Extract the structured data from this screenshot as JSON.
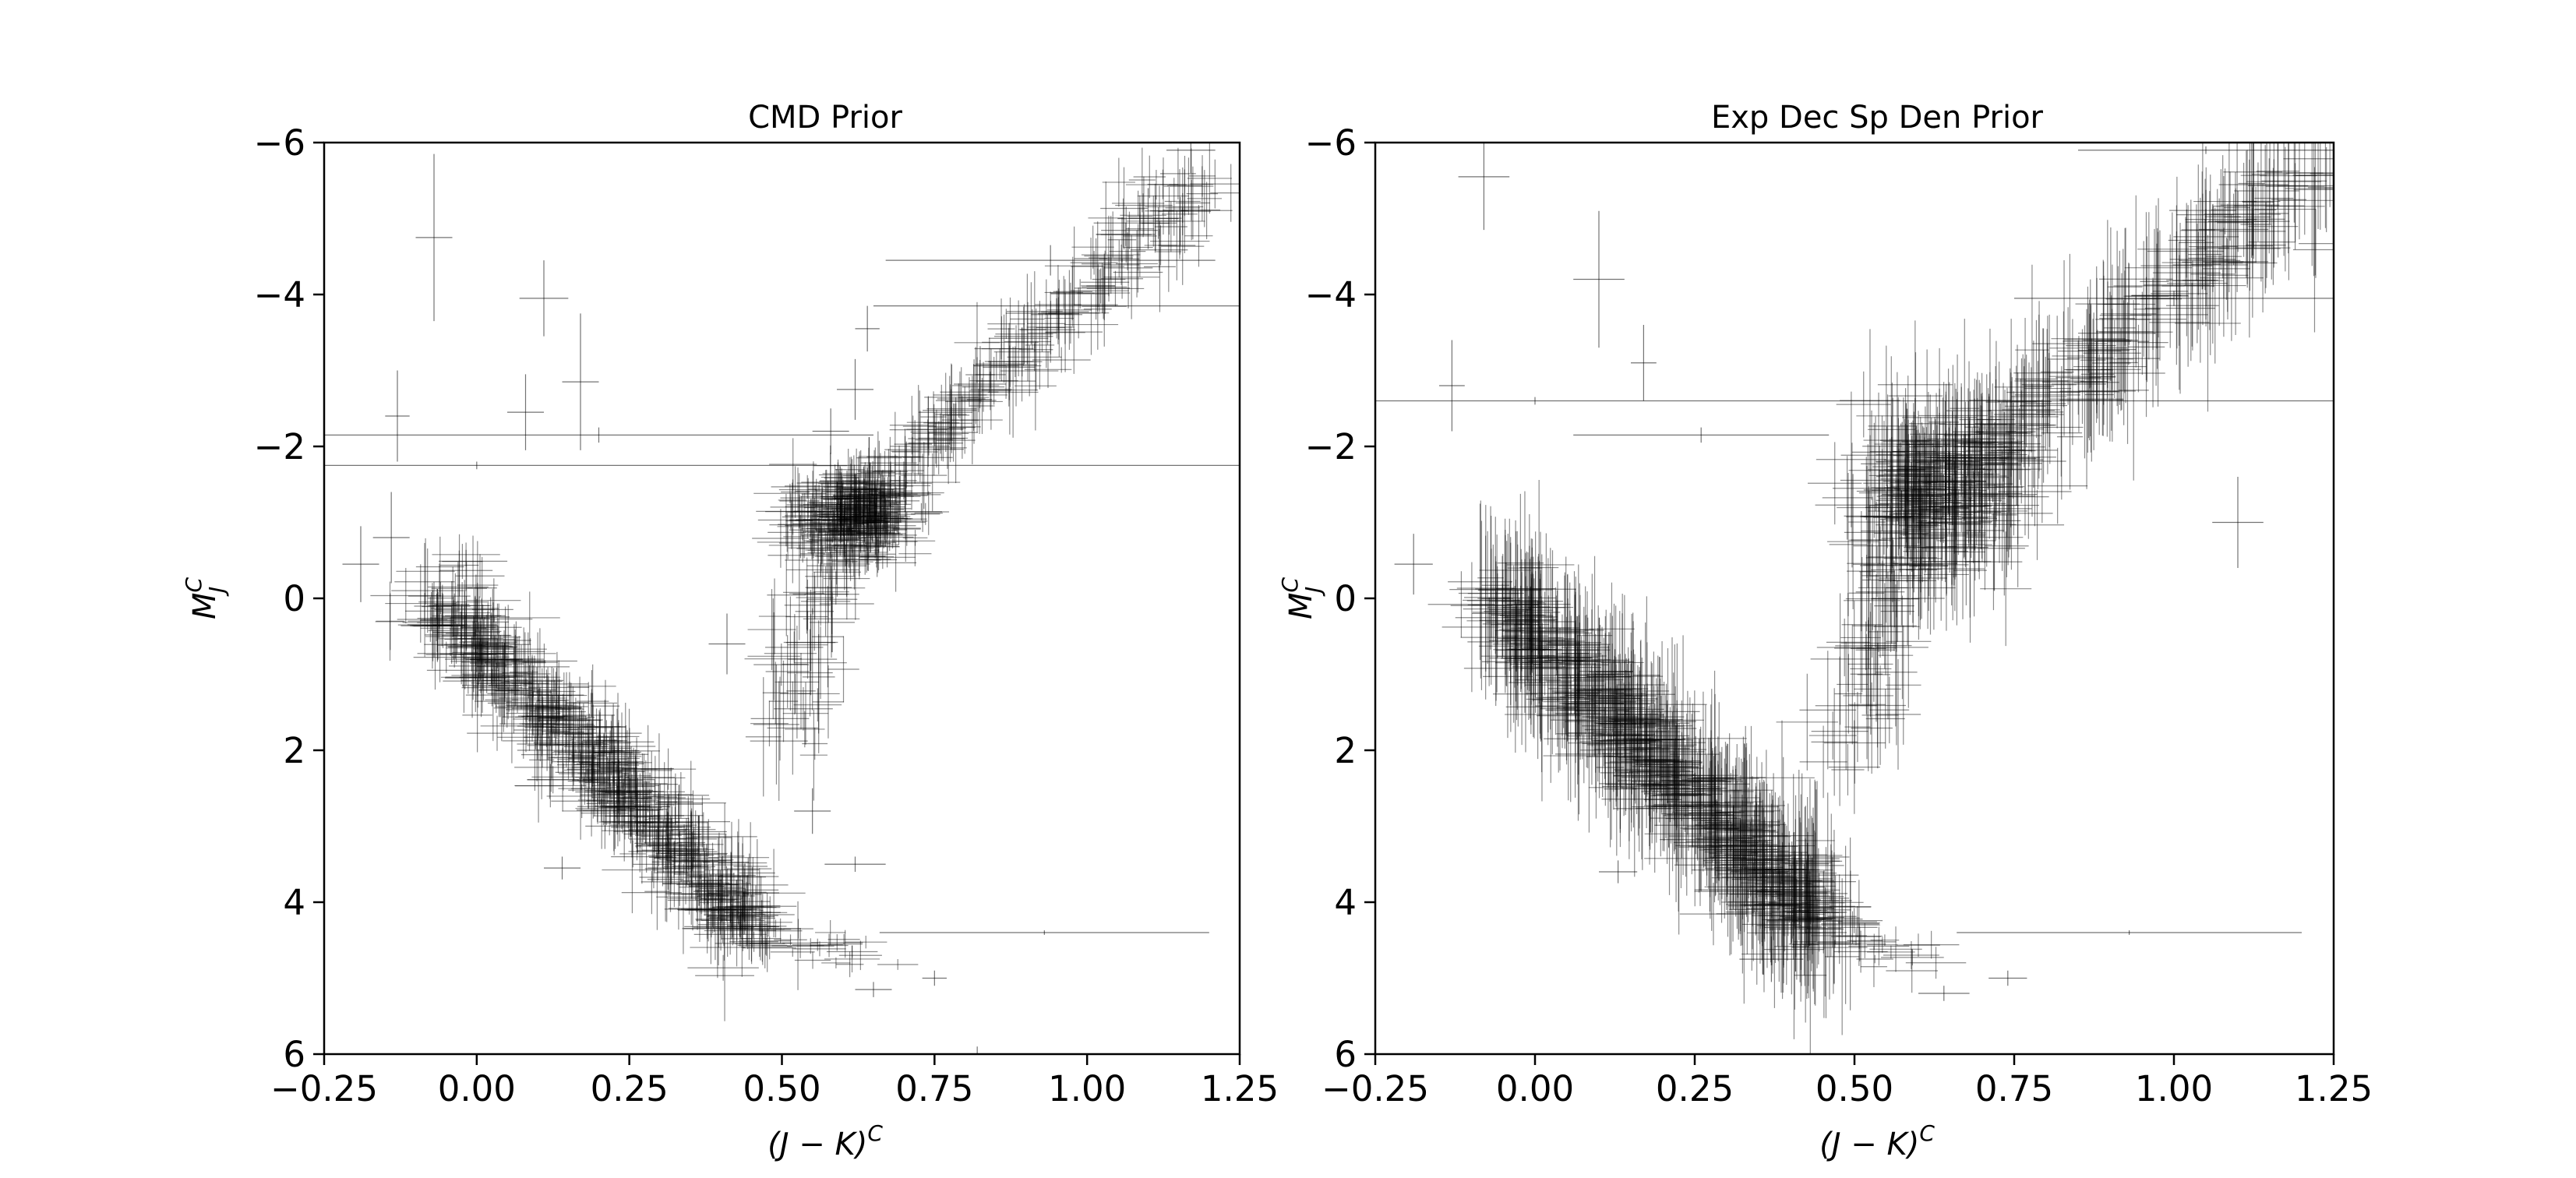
{
  "chart_data": [
    {
      "type": "scatter",
      "title": "CMD Prior",
      "xlabel": "(J − K)",
      "xlabel_sup": "C",
      "ylabel": "M",
      "ylabel_sub": "J",
      "ylabel_sup": "C",
      "xlim": [
        -0.25,
        1.25
      ],
      "ylim": [
        6,
        -6
      ],
      "xticks": [
        "−0.25",
        "0.00",
        "0.25",
        "0.50",
        "0.75",
        "1.00",
        "1.25"
      ],
      "xtick_values": [
        -0.25,
        0.0,
        0.25,
        0.5,
        0.75,
        1.0,
        1.25
      ],
      "yticks": [
        "−6",
        "−4",
        "−2",
        "0",
        "2",
        "4",
        "6"
      ],
      "ytick_values": [
        -6,
        -4,
        -2,
        0,
        2,
        4,
        6
      ],
      "grid": false,
      "marker": "errorbar-cross",
      "color": "#000000",
      "points": [
        {
          "x": -0.07,
          "y": -4.75,
          "xerr": 0.03,
          "yerr": 1.1
        },
        {
          "x": 0.11,
          "y": -3.95,
          "xerr": 0.04,
          "yerr": 0.5
        },
        {
          "x": 0.17,
          "y": -2.85,
          "xerr": 0.03,
          "yerr": 0.9
        },
        {
          "x": 0.08,
          "y": -2.45,
          "xerr": 0.03,
          "yerr": 0.5
        },
        {
          "x": -0.13,
          "y": -2.4,
          "xerr": 0.02,
          "yerr": 0.6
        },
        {
          "x": 0.2,
          "y": -2.15,
          "xerr": 0.45,
          "yerr": 0.1
        },
        {
          "x": 0.0,
          "y": -1.75,
          "xerr": 1.25,
          "yerr": 0.05
        },
        {
          "x": -0.19,
          "y": -0.45,
          "xerr": 0.03,
          "yerr": 0.5
        },
        {
          "x": -0.14,
          "y": -0.8,
          "xerr": 0.03,
          "yerr": 0.6
        },
        {
          "x": 0.14,
          "y": 3.55,
          "xerr": 0.03,
          "yerr": 0.15
        },
        {
          "x": 0.94,
          "y": -4.45,
          "xerr": 0.27,
          "yerr": 0.2
        },
        {
          "x": 1.17,
          "y": -5.9,
          "xerr": 0.04,
          "yerr": 0.3
        },
        {
          "x": 1.1,
          "y": -5.0,
          "xerr": 0.05,
          "yerr": 0.4
        },
        {
          "x": 0.95,
          "y": -3.85,
          "xerr": 0.3,
          "yerr": 0.1
        },
        {
          "x": 0.64,
          "y": -3.55,
          "xerr": 0.02,
          "yerr": 0.3
        },
        {
          "x": 0.62,
          "y": -2.75,
          "xerr": 0.03,
          "yerr": 0.4
        },
        {
          "x": 0.58,
          "y": -2.2,
          "xerr": 0.03,
          "yerr": 0.3
        },
        {
          "x": 0.41,
          "y": 0.6,
          "xerr": 0.03,
          "yerr": 0.4
        },
        {
          "x": 0.55,
          "y": 2.8,
          "xerr": 0.03,
          "yerr": 0.3
        },
        {
          "x": 0.62,
          "y": 3.5,
          "xerr": 0.05,
          "yerr": 0.1
        },
        {
          "x": 0.93,
          "y": 4.4,
          "xerr": 0.27,
          "yerr": 0.03
        },
        {
          "x": 0.75,
          "y": 5.0,
          "xerr": 0.02,
          "yerr": 0.1
        },
        {
          "x": 0.65,
          "y": 5.15,
          "xerr": 0.03,
          "yerr": 0.1
        },
        {
          "x": 0.82,
          "y": 6.0,
          "xerr": 0.03,
          "yerr": 0.1
        }
      ],
      "clusters": [
        {
          "kind": "band",
          "x0": -0.07,
          "y0": 0.0,
          "x1": 0.47,
          "y1": 4.4,
          "halfwidth": 0.45,
          "n": 600,
          "xerr": [
            0.02,
            0.06
          ],
          "yerr": [
            0.15,
            0.6
          ]
        },
        {
          "kind": "blob",
          "cx": 0.62,
          "cy": -1.05,
          "sx": 0.05,
          "sy": 0.3,
          "n": 260,
          "xerr": [
            0.02,
            0.06
          ],
          "yerr": [
            0.1,
            0.4
          ]
        },
        {
          "kind": "band",
          "x0": 0.6,
          "y0": -1.0,
          "x1": 1.2,
          "y1": -5.6,
          "halfwidth": 0.3,
          "n": 240,
          "xerr": [
            0.02,
            0.05
          ],
          "yerr": [
            0.15,
            0.6
          ]
        },
        {
          "kind": "band",
          "x0": 0.5,
          "y0": 2.0,
          "x1": 0.58,
          "y1": -0.5,
          "halfwidth": 0.35,
          "n": 60,
          "xerr": [
            0.02,
            0.05
          ],
          "yerr": [
            0.2,
            0.8
          ]
        },
        {
          "kind": "band",
          "x0": 0.42,
          "y0": 4.2,
          "x1": 0.64,
          "y1": 4.8,
          "halfwidth": 0.15,
          "n": 30,
          "xerr": [
            0.02,
            0.05
          ],
          "yerr": [
            0.05,
            0.2
          ]
        }
      ]
    },
    {
      "type": "scatter",
      "title": "Exp Dec Sp Den Prior",
      "xlabel": "(J − K)",
      "xlabel_sup": "C",
      "ylabel": "M",
      "ylabel_sub": "J",
      "ylabel_sup": "C",
      "xlim": [
        -0.25,
        1.25
      ],
      "ylim": [
        6,
        -6
      ],
      "xticks": [
        "−0.25",
        "0.00",
        "0.25",
        "0.50",
        "0.75",
        "1.00",
        "1.25"
      ],
      "xtick_values": [
        -0.25,
        0.0,
        0.25,
        0.5,
        0.75,
        1.0,
        1.25
      ],
      "yticks": [
        "−6",
        "−4",
        "−2",
        "0",
        "2",
        "4",
        "6"
      ],
      "ytick_values": [
        -6,
        -4,
        -2,
        0,
        2,
        4,
        6
      ],
      "grid": false,
      "marker": "errorbar-cross",
      "color": "#000000",
      "points": [
        {
          "x": -0.08,
          "y": -5.55,
          "xerr": 0.04,
          "yerr": 0.7
        },
        {
          "x": 0.1,
          "y": -4.2,
          "xerr": 0.04,
          "yerr": 0.9
        },
        {
          "x": 0.17,
          "y": -3.1,
          "xerr": 0.02,
          "yerr": 0.5
        },
        {
          "x": -0.13,
          "y": -2.8,
          "xerr": 0.02,
          "yerr": 0.6
        },
        {
          "x": 0.0,
          "y": -2.6,
          "xerr": 1.25,
          "yerr": 0.05
        },
        {
          "x": 0.26,
          "y": -2.15,
          "xerr": 0.2,
          "yerr": 0.1
        },
        {
          "x": -0.19,
          "y": -0.45,
          "xerr": 0.03,
          "yerr": 0.4
        },
        {
          "x": 0.13,
          "y": 3.6,
          "xerr": 0.03,
          "yerr": 0.15
        },
        {
          "x": 0.93,
          "y": 4.4,
          "xerr": 0.27,
          "yerr": 0.03
        },
        {
          "x": 0.74,
          "y": 5.0,
          "xerr": 0.03,
          "yerr": 0.1
        },
        {
          "x": 0.64,
          "y": 5.2,
          "xerr": 0.04,
          "yerr": 0.1
        },
        {
          "x": 0.37,
          "y": 4.75,
          "xerr": 0.05,
          "yerr": 0.3
        },
        {
          "x": 1.05,
          "y": -5.9,
          "xerr": 0.2,
          "yerr": 0.05
        },
        {
          "x": 1.0,
          "y": -3.95,
          "xerr": 0.25,
          "yerr": 0.1
        },
        {
          "x": 1.1,
          "y": -1.0,
          "xerr": 0.04,
          "yerr": 0.6
        }
      ],
      "clusters": [
        {
          "kind": "band",
          "x0": -0.06,
          "y0": 0.0,
          "x1": 0.45,
          "y1": 4.3,
          "halfwidth": 0.5,
          "n": 650,
          "xerr": [
            0.02,
            0.06
          ],
          "yerr": [
            0.4,
            1.2
          ]
        },
        {
          "kind": "blob",
          "cx": 0.62,
          "cy": -1.3,
          "sx": 0.06,
          "sy": 0.6,
          "n": 260,
          "xerr": [
            0.02,
            0.06
          ],
          "yerr": [
            0.4,
            1.0
          ]
        },
        {
          "kind": "band",
          "x0": 0.65,
          "y0": -1.5,
          "x1": 1.2,
          "y1": -5.5,
          "halfwidth": 0.45,
          "n": 260,
          "xerr": [
            0.02,
            0.06
          ],
          "yerr": [
            0.4,
            1.2
          ]
        },
        {
          "kind": "band",
          "x0": 0.5,
          "y0": 2.0,
          "x1": 0.56,
          "y1": -0.5,
          "halfwidth": 0.4,
          "n": 60,
          "xerr": [
            0.02,
            0.05
          ],
          "yerr": [
            0.3,
            1.0
          ]
        },
        {
          "kind": "band",
          "x0": 0.42,
          "y0": 4.2,
          "x1": 0.64,
          "y1": 4.8,
          "halfwidth": 0.15,
          "n": 30,
          "xerr": [
            0.02,
            0.05
          ],
          "yerr": [
            0.05,
            0.3
          ]
        }
      ]
    }
  ]
}
